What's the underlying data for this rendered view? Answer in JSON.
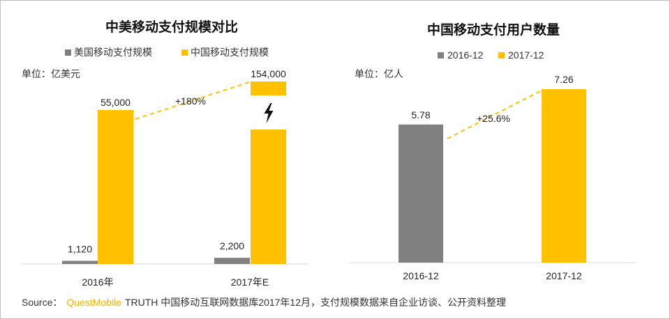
{
  "chart_data": [
    {
      "type": "bar",
      "title": "中美移动支付规模对比",
      "unit_label": "单位：亿美元",
      "categories": [
        "2016年",
        "2017年E"
      ],
      "series": [
        {
          "name": "美国移动支付规模",
          "color": "#808080",
          "values": [
            1120,
            2200
          ],
          "labels": [
            "1,120",
            "2,200"
          ]
        },
        {
          "name": "中国移动支付规模",
          "color": "#ffc000",
          "values": [
            55000,
            154000
          ],
          "labels": [
            "55,000",
            "154,000"
          ]
        }
      ],
      "axis_break": true,
      "break_icon": "lightning-icon",
      "growth_label": "+180%",
      "legend_position": "top",
      "grid": false
    },
    {
      "type": "bar",
      "title": "中国移动支付用户数量",
      "unit_label": "单位：亿人",
      "categories": [
        "2016-12",
        "2017-12"
      ],
      "series": [
        {
          "name": "2016-12",
          "color": "#808080"
        },
        {
          "name": "2017-12",
          "color": "#ffc000"
        }
      ],
      "values": [
        5.78,
        7.26
      ],
      "labels": [
        "5.78",
        "7.26"
      ],
      "growth_label": "+25.6%",
      "legend_position": "top",
      "grid": false
    }
  ],
  "source": {
    "prefix": "Source：",
    "brand": "QuestMobile",
    "text": "TRUTH 中国移动互联网数据库2017年12月，支付规模数据来自企业访谈、公开资料整理"
  },
  "colors": {
    "gray": "#808080",
    "gold": "#ffc000",
    "axis": "#d9d9d9"
  }
}
